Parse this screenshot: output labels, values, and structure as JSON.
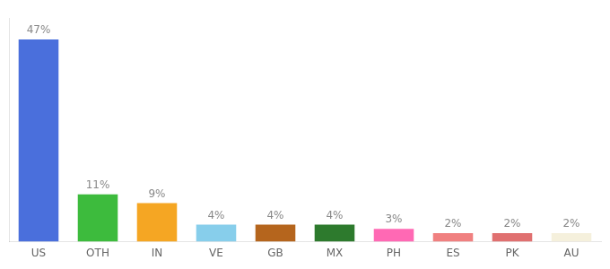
{
  "chart_data": {
    "type": "bar",
    "categories": [
      "US",
      "OTH",
      "IN",
      "VE",
      "GB",
      "MX",
      "PH",
      "ES",
      "PK",
      "AU"
    ],
    "values": [
      47,
      11,
      9,
      4,
      4,
      4,
      3,
      2,
      2,
      2
    ],
    "value_labels": [
      "47%",
      "11%",
      "9%",
      "4%",
      "4%",
      "4%",
      "3%",
      "2%",
      "2%",
      "2%"
    ],
    "colors": [
      "#4a6fdc",
      "#3dbb3d",
      "#f5a623",
      "#87ceeb",
      "#b5651d",
      "#2d7a2d",
      "#ff69b4",
      "#f08080",
      "#e07070",
      "#f5f0dc"
    ],
    "ylim": [
      0,
      52
    ],
    "grid": false,
    "data_labels": true,
    "tick_labels": "x"
  }
}
